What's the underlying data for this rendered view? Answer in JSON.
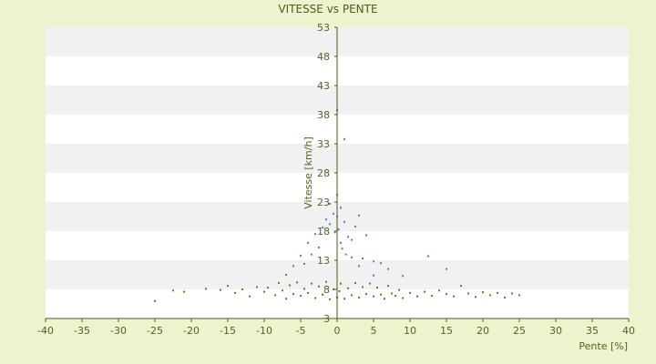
{
  "chart_data": {
    "type": "scatter",
    "title": "VITESSE vs PENTE",
    "xlabel": "Pente [%]",
    "ylabel": "Vitesse [km/h]",
    "xlim": [
      -40,
      40
    ],
    "ylim": [
      3,
      53
    ],
    "x_ticks": [
      "-40",
      "-35",
      "-30",
      "-25",
      "-20",
      "-15",
      "-10",
      "-5",
      "0",
      "5",
      "10",
      "15",
      "20",
      "25",
      "30",
      "35",
      "40"
    ],
    "y_ticks": [
      "3",
      "8",
      "13",
      "18",
      "23",
      "28",
      "33",
      "38",
      "43",
      "48",
      "53"
    ],
    "grid": "horizontal alternating bands",
    "legend": "none",
    "colors": {
      "background": "#eef2cf",
      "band_light": "#ffffff",
      "band_dark": "#f1f1f1",
      "axis": "#4d5a1a",
      "series_low": "#6b7a12",
      "series_high": "#3c86c8"
    },
    "series": [
      {
        "values": [
          [
            -25,
            6
          ],
          [
            -22.5,
            7.8
          ],
          [
            -21,
            7.6
          ],
          [
            -18,
            8.1
          ],
          [
            -16,
            7.9
          ],
          [
            -15,
            8.6
          ],
          [
            -14,
            7.4
          ],
          [
            -13,
            8.0
          ],
          [
            -12,
            6.8
          ],
          [
            -11,
            8.4
          ],
          [
            -10,
            7.6
          ],
          [
            -9.5,
            8.3
          ],
          [
            -8.5,
            7.0
          ],
          [
            -8,
            9.1
          ],
          [
            -7.5,
            7.8
          ],
          [
            -7,
            6.4
          ],
          [
            -6.5,
            8.7
          ],
          [
            -6,
            7.2
          ],
          [
            -5.5,
            9.2
          ],
          [
            -5,
            6.9
          ],
          [
            -4.5,
            8.1
          ],
          [
            -4,
            7.4
          ],
          [
            -3.5,
            9.0
          ],
          [
            -3,
            6.5
          ],
          [
            -2.5,
            8.5
          ],
          [
            -2,
            7.1
          ],
          [
            -1.5,
            9.3
          ],
          [
            -1,
            6.3
          ],
          [
            -0.5,
            8.0
          ],
          [
            0,
            6.6
          ],
          [
            0.3,
            7.7
          ],
          [
            0.5,
            9.0
          ],
          [
            1,
            6.4
          ],
          [
            1.5,
            8.2
          ],
          [
            2,
            7.0
          ],
          [
            2.5,
            9.1
          ],
          [
            3,
            6.6
          ],
          [
            3.5,
            8.4
          ],
          [
            4,
            7.2
          ],
          [
            4.5,
            9.0
          ],
          [
            5,
            6.8
          ],
          [
            5.5,
            8.3
          ],
          [
            6,
            7.1
          ],
          [
            6.5,
            6.4
          ],
          [
            7,
            8.6
          ],
          [
            7.5,
            7.3
          ],
          [
            8,
            6.9
          ],
          [
            8.5,
            7.9
          ],
          [
            9,
            6.5
          ],
          [
            10,
            7.4
          ],
          [
            11,
            6.8
          ],
          [
            12,
            7.6
          ],
          [
            13,
            6.9
          ],
          [
            14,
            7.8
          ],
          [
            15,
            7.2
          ],
          [
            16,
            6.8
          ],
          [
            17,
            8.6
          ],
          [
            18,
            7.3
          ],
          [
            19,
            6.7
          ],
          [
            20,
            7.5
          ],
          [
            21,
            7.0
          ],
          [
            22,
            7.4
          ],
          [
            23,
            6.6
          ],
          [
            24,
            7.3
          ],
          [
            25,
            7.0
          ]
        ]
      },
      {
        "values": [
          [
            -7,
            10.5
          ],
          [
            -6,
            12
          ],
          [
            -5,
            13.8
          ],
          [
            -4.5,
            12.4
          ],
          [
            -4,
            16
          ],
          [
            -3.5,
            14
          ],
          [
            -3,
            17.5
          ],
          [
            -2.5,
            15.2
          ],
          [
            -2,
            18.6
          ],
          [
            -1.5,
            20
          ],
          [
            -1,
            19.2
          ],
          [
            -1,
            22.7
          ],
          [
            -0.5,
            21
          ],
          [
            -0.3,
            17.8
          ],
          [
            0,
            38.8
          ],
          [
            0,
            24.2
          ],
          [
            0,
            20.5
          ],
          [
            0.2,
            18.3
          ],
          [
            0.5,
            16
          ],
          [
            0.5,
            22
          ],
          [
            0.7,
            15
          ],
          [
            1,
            33.8
          ],
          [
            1,
            19.6
          ],
          [
            1.2,
            14
          ],
          [
            1.5,
            17
          ],
          [
            2,
            13.5
          ],
          [
            2,
            16.5
          ],
          [
            2.5,
            18.8
          ],
          [
            3,
            12
          ],
          [
            3,
            20.7
          ],
          [
            3.5,
            13.3
          ],
          [
            4,
            17.3
          ],
          [
            5,
            12.8
          ],
          [
            5,
            10.4
          ],
          [
            6,
            12.5
          ],
          [
            7,
            11.5
          ],
          [
            9,
            10.3
          ],
          [
            12.5,
            13.7
          ],
          [
            15,
            11.5
          ]
        ]
      }
    ]
  }
}
